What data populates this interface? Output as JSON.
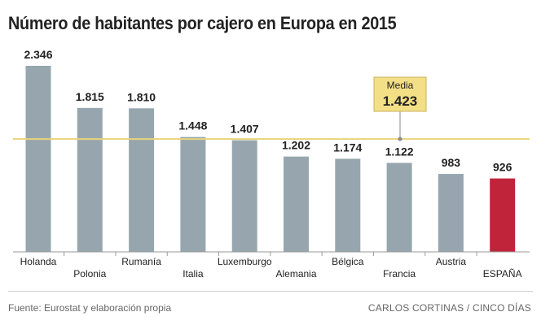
{
  "title": "Número de habitantes por cajero en Europa en 2015",
  "footer": {
    "source": "Fuente: Eurostat y elaboración propia",
    "credit": "CARLOS CORTINAS / CINCO DÍAS"
  },
  "colors": {
    "bar": "#97a6ae",
    "highlight": "#c0243a",
    "average_line": "#e8d37a",
    "average_box": "#f3df86",
    "average_box_border": "#c9b25a"
  },
  "chart_data": {
    "type": "bar",
    "title": "Número de habitantes por cajero en Europa en 2015",
    "categories": [
      "Holanda",
      "Polonia",
      "Rumanía",
      "Italia",
      "Luxemburgo",
      "Alemania",
      "Bélgica",
      "Francia",
      "Austria",
      "ESPAÑA"
    ],
    "values": [
      2346,
      1815,
      1810,
      1448,
      1407,
      1202,
      1174,
      1122,
      983,
      926
    ],
    "value_labels": [
      "2.346",
      "1.815",
      "1.810",
      "1.448",
      "1.407",
      "1.202",
      "1.174",
      "1.122",
      "983",
      "926"
    ],
    "highlight_category": "ESPAÑA",
    "average": {
      "label": "Media",
      "value": 1423,
      "value_label": "1.423"
    },
    "ylim": [
      0,
      2346
    ],
    "xlabel": "",
    "ylabel": "",
    "grid": false
  }
}
